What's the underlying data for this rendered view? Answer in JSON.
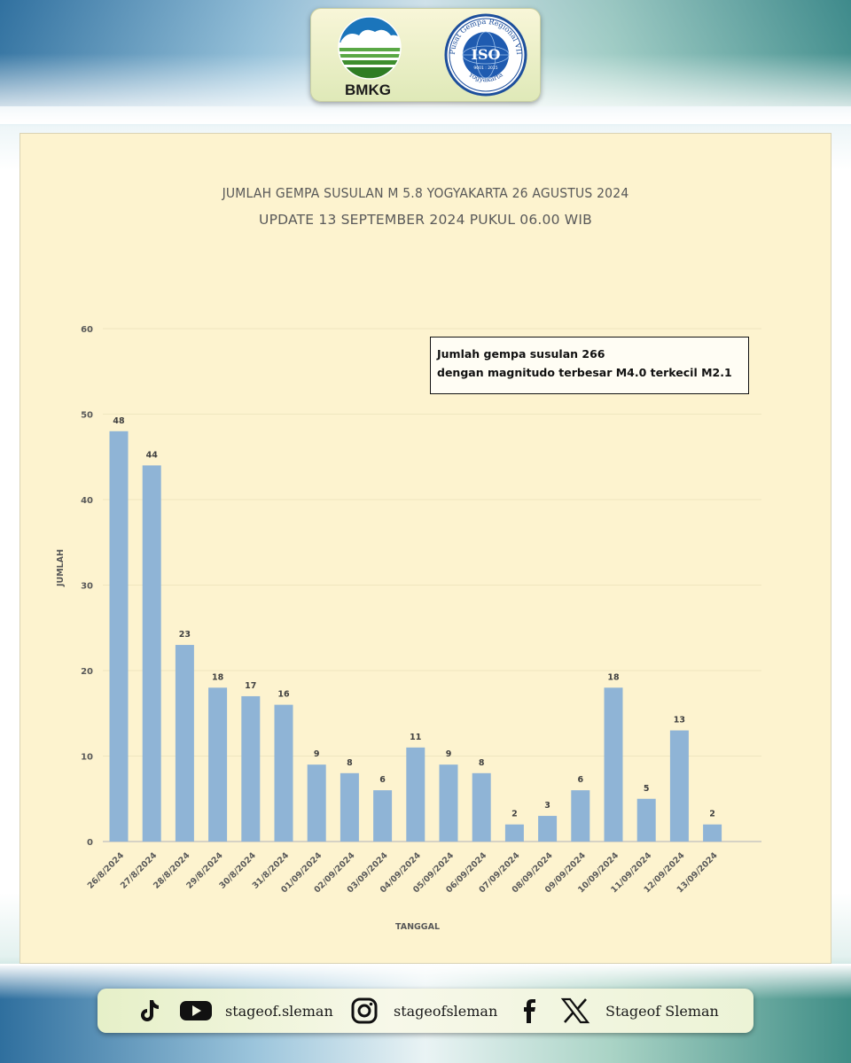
{
  "header": {
    "bmkg_label": "BMKG",
    "iso_ring_text": "Pusat Gempa Regional VII",
    "iso_bottom_text": "Yogyakarta",
    "iso_center": "ISO",
    "iso_standard": "9001 : 2015"
  },
  "chart_data": {
    "type": "bar",
    "title": "JUMLAH GEMPA SUSULAN M 5.8 YOGYAKARTA 26 AGUSTUS 2024",
    "subtitle": "UPDATE 13 SEPTEMBER 2024 PUKUL  06.00 WIB",
    "xlabel": "TANGGAL",
    "ylabel": "JUMLAH",
    "ylim": [
      0,
      60
    ],
    "yticks": [
      0,
      10,
      20,
      30,
      40,
      50,
      60
    ],
    "grid": true,
    "color": "#8fb4d6",
    "categories": [
      "26/8/2024",
      "27/8/2024",
      "28/8/2024",
      "29/8/2024",
      "30/8/2024",
      "31/8/2024",
      "01/09/2024",
      "02/09/2024",
      "03/09/2024",
      "04/09/2024",
      "05/09/2024",
      "06/09/2024",
      "07/09/2024",
      "08/09/2024",
      "09/09/2024",
      "10/09/2024",
      "11/09/2024",
      "12/09/2024",
      "13/09/2024"
    ],
    "values": [
      48,
      44,
      23,
      18,
      17,
      16,
      9,
      8,
      6,
      11,
      9,
      8,
      2,
      3,
      6,
      18,
      5,
      13,
      2
    ],
    "annotation_line1": "Jumlah gempa susulan 266",
    "annotation_line2": "dengan magnitudo terbesar M4.0 terkecil M2.1"
  },
  "social": {
    "youtube_handle": "stageof.sleman",
    "instagram_handle": "stageofsleman",
    "x_handle": "Stageof Sleman"
  }
}
